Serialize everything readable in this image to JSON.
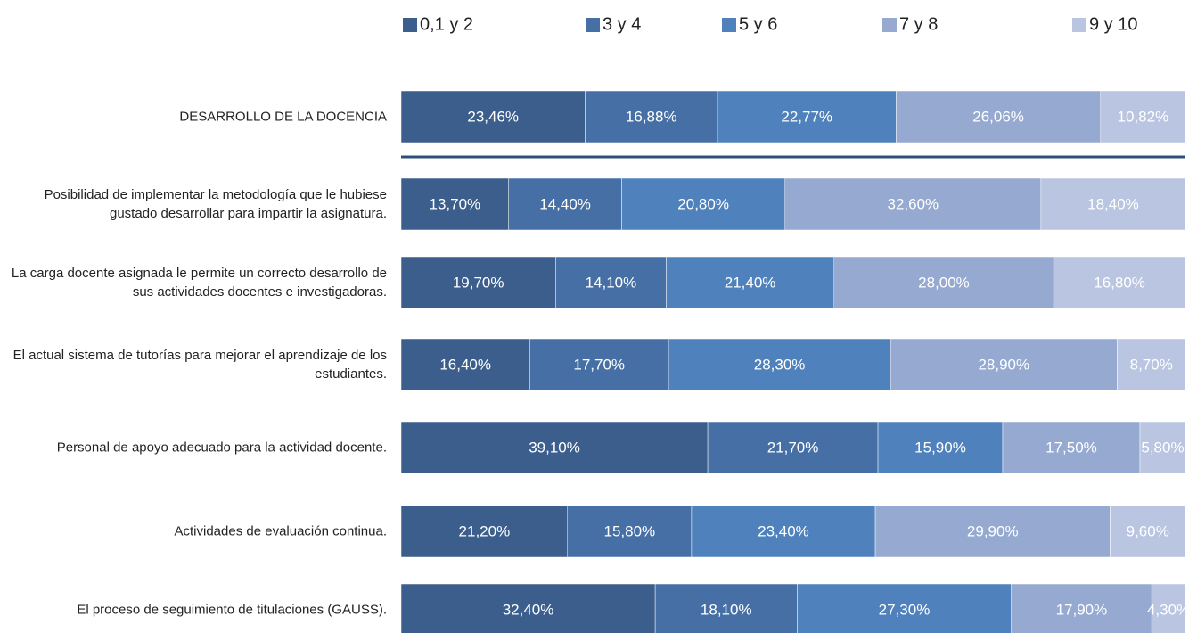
{
  "chart_data": {
    "type": "stacked_bar_horizontal",
    "categories": [
      "DESARROLLO DE LA DOCENCIA",
      "Posibilidad de implementar la metodología que le hubiese gustado desarrollar para impartir la asignatura.",
      "La carga docente asignada le permite un correcto desarrollo de sus actividades docentes e investigadoras.",
      "El actual sistema de tutorías para mejorar el aprendizaje de los estudiantes.",
      "Personal de apoyo adecuado para la actividad docente.",
      "Actividades de evaluación continua.",
      "El proceso de seguimiento de titulaciones (GAUSS)."
    ],
    "series": [
      {
        "name": "0,1 y 2",
        "color": "#3b5e8c",
        "values": [
          23.46,
          13.7,
          19.7,
          16.4,
          39.1,
          21.2,
          32.4
        ],
        "value_labels": [
          "23,46%",
          "13,70%",
          "19,70%",
          "16,40%",
          "39,10%",
          "21,20%",
          "32,40%"
        ]
      },
      {
        "name": "3 y 4",
        "color": "#4670a5",
        "values": [
          16.88,
          14.4,
          14.1,
          17.7,
          21.7,
          15.8,
          18.1
        ],
        "value_labels": [
          "16,88%",
          "14,40%",
          "14,10%",
          "17,70%",
          "21,70%",
          "15,80%",
          "18,10%"
        ]
      },
      {
        "name": "5 y 6",
        "color": "#4f81bd",
        "values": [
          22.77,
          20.8,
          21.4,
          28.3,
          15.9,
          23.4,
          27.3
        ],
        "value_labels": [
          "22,77%",
          "20,80%",
          "21,40%",
          "28,30%",
          "15,90%",
          "23,40%",
          "27,30%"
        ]
      },
      {
        "name": "7 y 8",
        "color": "#95a9d1",
        "values": [
          26.06,
          32.6,
          28.0,
          28.9,
          17.5,
          29.9,
          17.9
        ],
        "value_labels": [
          "26,06%",
          "32,60%",
          "28,00%",
          "28,90%",
          "17,50%",
          "29,90%",
          "17,90%"
        ]
      },
      {
        "name": "9 y 10",
        "color": "#b9c5e1",
        "values": [
          10.82,
          18.4,
          16.8,
          8.7,
          5.8,
          9.6,
          4.3
        ],
        "value_labels": [
          "10,82%",
          "18,40%",
          "16,80%",
          "8,70%",
          "5,80%",
          "9,60%",
          "4,30%"
        ]
      }
    ],
    "legend": "top"
  }
}
